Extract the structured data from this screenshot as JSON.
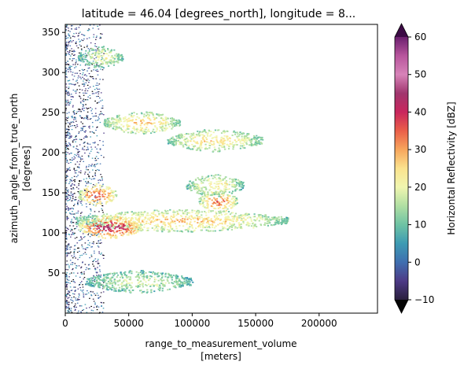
{
  "chart_data": {
    "type": "heatmap",
    "title": "latitude = 46.04 [degrees_north], longitude = 8...",
    "xlabel": "range_to_measurement_volume",
    "xlabel_units": "[meters]",
    "ylabel": "azimuth_angle_from_true_north",
    "ylabel_units": "[degrees]",
    "xlim": [
      0,
      246000
    ],
    "ylim": [
      0,
      360
    ],
    "x_ticks": [
      {
        "value": 0,
        "label": "0"
      },
      {
        "value": 50000,
        "label": "50000"
      },
      {
        "value": 100000,
        "label": "100000"
      },
      {
        "value": 150000,
        "label": "150000"
      },
      {
        "value": 200000,
        "label": "200000"
      }
    ],
    "y_ticks": [
      {
        "value": 50,
        "label": "50"
      },
      {
        "value": 100,
        "label": "100"
      },
      {
        "value": 150,
        "label": "150"
      },
      {
        "value": 200,
        "label": "200"
      },
      {
        "value": 250,
        "label": "250"
      },
      {
        "value": 300,
        "label": "300"
      },
      {
        "value": 350,
        "label": "350"
      }
    ],
    "colorbar": {
      "label": "Horizontal Reflectivity [dBZ]",
      "range": [
        -10,
        60
      ],
      "extend": "both",
      "colormap": "Spectral_r",
      "ticks": [
        {
          "value": -10,
          "label": "−10"
        },
        {
          "value": 0,
          "label": "0"
        },
        {
          "value": 10,
          "label": "10"
        },
        {
          "value": 20,
          "label": "20"
        },
        {
          "value": 30,
          "label": "30"
        },
        {
          "value": 40,
          "label": "40"
        },
        {
          "value": 50,
          "label": "50"
        },
        {
          "value": 60,
          "label": "60"
        }
      ],
      "colors": [
        "#050505",
        "#2a1f3d",
        "#4d3a86",
        "#3f6fb0",
        "#3d9bb3",
        "#6ec3a4",
        "#b0dfa3",
        "#f0f6b0",
        "#fbe38e",
        "#f7a65c",
        "#ea5f49",
        "#c9265d",
        "#a0366e",
        "#d783b8",
        "#b8559d",
        "#6b1f6e",
        "#3c0b45"
      ]
    },
    "echo_regions": [
      {
        "az": 116,
        "range_start": 8000,
        "range_end": 175000,
        "dbz": 24
      },
      {
        "az": 108,
        "range_start": 10000,
        "range_end": 60000,
        "dbz": 38
      },
      {
        "az": 148,
        "range_start": 10000,
        "range_end": 40000,
        "dbz": 32
      },
      {
        "az": 140,
        "range_start": 105000,
        "range_end": 135000,
        "dbz": 30
      },
      {
        "az": 160,
        "range_start": 95000,
        "range_end": 140000,
        "dbz": 20
      },
      {
        "az": 216,
        "range_start": 80000,
        "range_end": 155000,
        "dbz": 22
      },
      {
        "az": 238,
        "range_start": 30000,
        "range_end": 90000,
        "dbz": 24
      },
      {
        "az": 320,
        "range_start": 10000,
        "range_end": 45000,
        "dbz": 18
      },
      {
        "az": 40,
        "range_start": 15000,
        "range_end": 100000,
        "dbz": 16
      }
    ]
  }
}
